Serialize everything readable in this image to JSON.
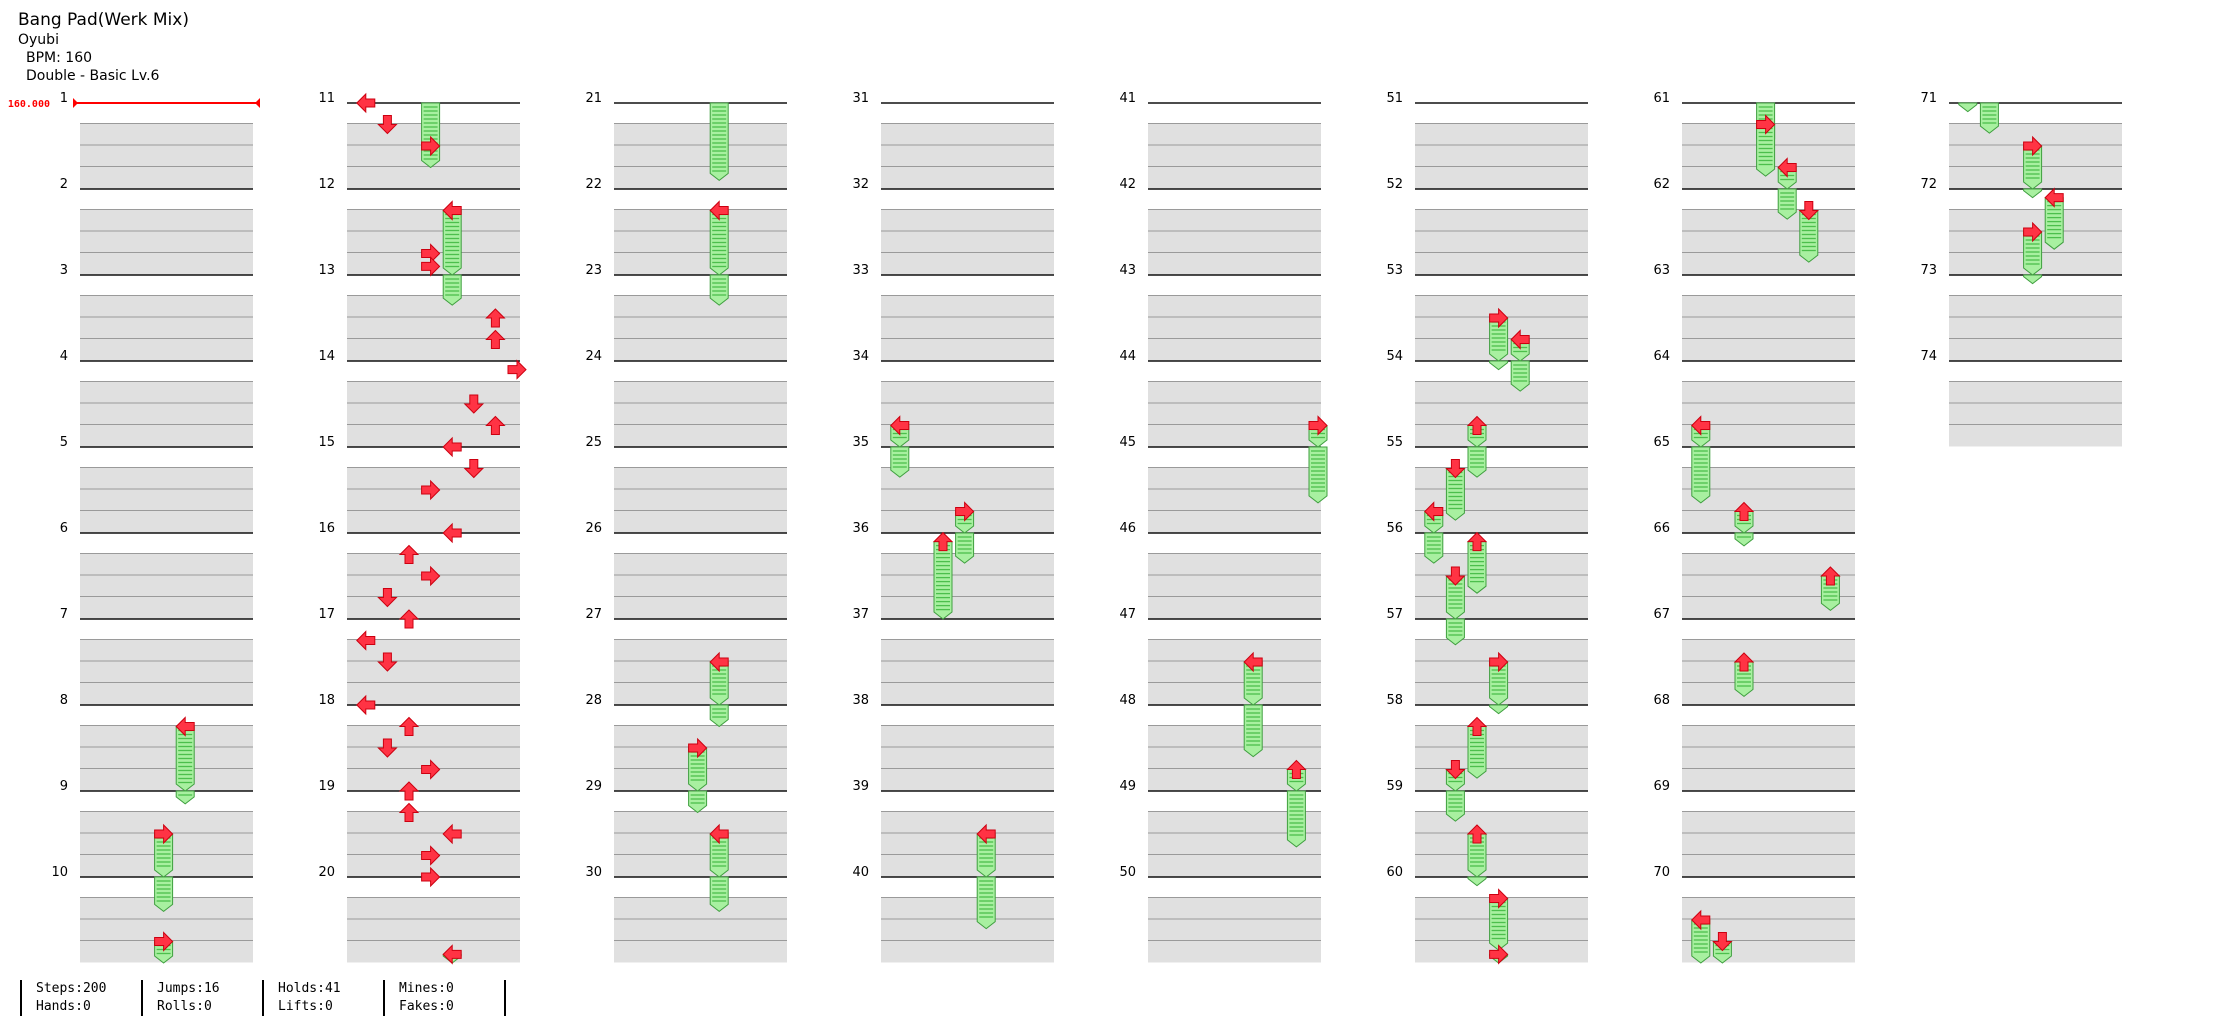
{
  "header": {
    "title": "Bang Pad(Werk Mix)",
    "artist": "Oyubi",
    "bpm_text": "BPM: 160",
    "difficulty_text": "Double - Basic Lv.6"
  },
  "bpm_marker": {
    "value_text": "160.000",
    "measure": 1,
    "color": "#ff0000"
  },
  "chart": {
    "measures": 74,
    "measures_per_column": 10,
    "lanes": 8,
    "colors": {
      "arrow": "#ff3344",
      "arrow_outline": "#cc0010",
      "hold_fill": "#a8f0a0",
      "hold_stripe": "#4cbf4c",
      "hold_outline": "#3f9f3f",
      "beat_band": "#e0e0e0"
    },
    "direction_by_lane": [
      "left",
      "down",
      "up",
      "right",
      "left",
      "down",
      "up",
      "right"
    ],
    "measure_labels": [
      "1",
      "2",
      "3",
      "4",
      "5",
      "6",
      "7",
      "8",
      "9",
      "10",
      "11",
      "12",
      "13",
      "14",
      "15",
      "16",
      "17",
      "18",
      "19",
      "20",
      "21",
      "22",
      "23",
      "24",
      "25",
      "26",
      "27",
      "28",
      "29",
      "30",
      "31",
      "32",
      "33",
      "34",
      "35",
      "36",
      "37",
      "38",
      "39",
      "40",
      "41",
      "42",
      "43",
      "44",
      "45",
      "46",
      "47",
      "48",
      "49",
      "50",
      "51",
      "52",
      "53",
      "54",
      "55",
      "56",
      "57",
      "58",
      "59",
      "60",
      "61",
      "62",
      "63",
      "64",
      "65",
      "66",
      "67",
      "68",
      "69",
      "70",
      "71",
      "72",
      "73",
      "74"
    ],
    "holds": [
      [
        8.25,
        4,
        0.9
      ],
      [
        9.5,
        3,
        0.9
      ],
      [
        10.75,
        3,
        1.0
      ],
      [
        12.25,
        4,
        1.1
      ],
      [
        20.9,
        4,
        1.0
      ],
      [
        22.25,
        4,
        1.1
      ],
      [
        27.5,
        4,
        0.75
      ],
      [
        28.5,
        3,
        0.75
      ],
      [
        29.5,
        4,
        0.9
      ],
      [
        34.75,
        0,
        0.6
      ],
      [
        35.75,
        3,
        0.6
      ],
      [
        36.1,
        2,
        0.9
      ],
      [
        39.5,
        4,
        1.1
      ],
      [
        44.75,
        7,
        0.9
      ],
      [
        47.5,
        4,
        1.1
      ],
      [
        48.75,
        6,
        0.9
      ],
      [
        53.5,
        3,
        0.6
      ],
      [
        53.75,
        4,
        0.6
      ],
      [
        54.75,
        2,
        0.6
      ],
      [
        55.25,
        1,
        0.6
      ],
      [
        55.75,
        0,
        0.6
      ],
      [
        56.1,
        2,
        0.6
      ],
      [
        56.5,
        1,
        0.8
      ],
      [
        57.5,
        3,
        0.6
      ],
      [
        58.25,
        2,
        0.6
      ],
      [
        58.75,
        1,
        0.6
      ],
      [
        59.5,
        2,
        0.6
      ],
      [
        60.25,
        3,
        0.6
      ],
      [
        60.9,
        3,
        0.6
      ],
      [
        61.25,
        3,
        0.6
      ],
      [
        61.75,
        4,
        0.6
      ],
      [
        62.25,
        5,
        0.6
      ],
      [
        64.75,
        0,
        0.9
      ],
      [
        65.75,
        2,
        0.4
      ],
      [
        66.5,
        6,
        0.4
      ],
      [
        67.5,
        2,
        0.4
      ],
      [
        70.5,
        0,
        0.6
      ],
      [
        70.75,
        1,
        0.6
      ],
      [
        71.5,
        3,
        0.6
      ],
      [
        72.1,
        4,
        0.6
      ],
      [
        72.5,
        3,
        0.6
      ]
    ],
    "taps": [
      [
        11.0,
        0
      ],
      [
        11.25,
        1
      ],
      [
        11.5,
        3
      ],
      [
        12.75,
        3
      ],
      [
        12.9,
        3
      ],
      [
        13.5,
        6
      ],
      [
        13.75,
        6
      ],
      [
        14.1,
        7
      ],
      [
        14.5,
        5
      ],
      [
        14.75,
        6
      ],
      [
        15.0,
        4
      ],
      [
        15.25,
        5
      ],
      [
        15.5,
        3
      ],
      [
        16.0,
        4
      ],
      [
        16.25,
        2
      ],
      [
        16.5,
        3
      ],
      [
        16.75,
        1
      ],
      [
        17.0,
        2
      ],
      [
        17.25,
        0
      ],
      [
        17.5,
        1
      ],
      [
        18.0,
        0
      ],
      [
        18.25,
        2
      ],
      [
        18.5,
        1
      ],
      [
        18.75,
        3
      ],
      [
        19.0,
        2
      ],
      [
        19.25,
        2
      ],
      [
        19.5,
        4
      ],
      [
        19.75,
        3
      ],
      [
        20.0,
        3
      ]
    ]
  },
  "stats": {
    "steps": "Steps:200",
    "hands": "Hands:0",
    "jumps": "Jumps:16",
    "rolls": "Rolls:0",
    "holds": "Holds:41",
    "lifts": "Lifts:0",
    "mines": "Mines:0",
    "fakes": "Fakes:0"
  }
}
